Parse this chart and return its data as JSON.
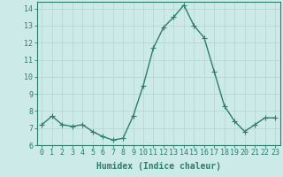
{
  "x": [
    0,
    1,
    2,
    3,
    4,
    5,
    6,
    7,
    8,
    9,
    10,
    11,
    12,
    13,
    14,
    15,
    16,
    17,
    18,
    19,
    20,
    21,
    22,
    23
  ],
  "y": [
    7.2,
    7.7,
    7.2,
    7.1,
    7.2,
    6.8,
    6.5,
    6.3,
    6.4,
    7.7,
    9.5,
    11.7,
    12.9,
    13.5,
    14.2,
    13.0,
    12.3,
    10.3,
    8.3,
    7.4,
    6.8,
    7.2,
    7.6,
    7.6
  ],
  "line_color": "#2d7d6e",
  "marker": "+",
  "marker_color": "#2d7d6e",
  "bg_color": "#cceae7",
  "grid_color": "#b8d8d4",
  "axis_color": "#2d7d6e",
  "xlabel": "Humidex (Indice chaleur)",
  "ylim": [
    6,
    14.4
  ],
  "xlim": [
    -0.5,
    23.5
  ],
  "yticks": [
    6,
    7,
    8,
    9,
    10,
    11,
    12,
    13,
    14
  ],
  "xticks": [
    0,
    1,
    2,
    3,
    4,
    5,
    6,
    7,
    8,
    9,
    10,
    11,
    12,
    13,
    14,
    15,
    16,
    17,
    18,
    19,
    20,
    21,
    22,
    23
  ],
  "xtick_labels": [
    "0",
    "1",
    "2",
    "3",
    "4",
    "5",
    "6",
    "7",
    "8",
    "9",
    "10",
    "11",
    "12",
    "13",
    "14",
    "15",
    "16",
    "17",
    "18",
    "19",
    "20",
    "21",
    "22",
    "23"
  ],
  "xlabel_fontsize": 7,
  "tick_fontsize": 6,
  "line_width": 1.0,
  "marker_size": 4
}
